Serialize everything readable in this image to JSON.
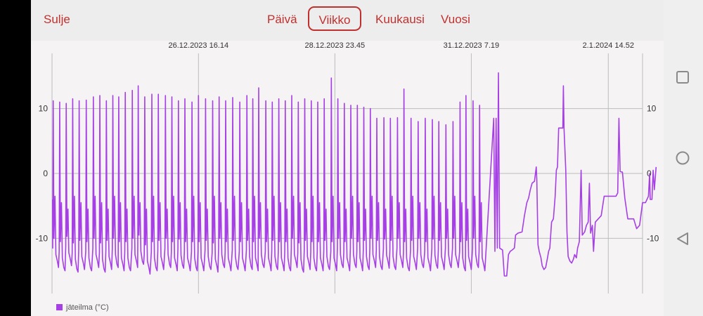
{
  "header": {
    "close_label": "Sulje",
    "tabs": [
      {
        "label": "Päivä",
        "active": false
      },
      {
        "label": "Viikko",
        "active": true
      },
      {
        "label": "Kuukausi",
        "active": false
      },
      {
        "label": "Vuosi",
        "active": false
      }
    ]
  },
  "system_nav": {
    "icons": [
      "recent-apps-square-icon",
      "home-circle-icon",
      "back-triangle-icon"
    ]
  },
  "colors": {
    "accent": "#c0302e",
    "series": "#a63fe6",
    "grid": "#bdbdbd"
  },
  "chart_data": {
    "type": "line",
    "title": "",
    "x_tick_labels": [
      "26.12.2023 16.14",
      "28.12.2023 23.45",
      "31.12.2023 7.19",
      "2.1.2024 14.52"
    ],
    "y_ticks": [
      10,
      0,
      -10
    ],
    "y_tick_labels": [
      "10",
      "0",
      "-10"
    ],
    "ylim": [
      -18.5,
      18.5
    ],
    "y_axis_sides": "left and right",
    "grid": true,
    "legend": "bottom-left",
    "x_unit": "days since 24.12.2023 0.00 (approx.)",
    "xlim": [
      0.2,
      10.2
    ],
    "x_tick_values": [
      2.68,
      4.99,
      7.3,
      9.62
    ],
    "series": [
      {
        "name": "jäteilma (°C)",
        "cycles": [
          {
            "t": 0.22,
            "peak": 11.2,
            "low": -14.5
          },
          {
            "t": 0.33,
            "peak": 11.0,
            "low": -15.0
          },
          {
            "t": 0.44,
            "peak": 10.8,
            "low": -14.2
          },
          {
            "t": 0.55,
            "peak": 11.5,
            "low": -15.2
          },
          {
            "t": 0.66,
            "peak": 11.2,
            "low": -14.8
          },
          {
            "t": 0.78,
            "peak": 11.3,
            "low": -15.0
          },
          {
            "t": 0.9,
            "peak": 11.8,
            "low": -14.5
          },
          {
            "t": 1.01,
            "peak": 12.0,
            "low": -15.2
          },
          {
            "t": 1.12,
            "peak": 11.2,
            "low": -14.8
          },
          {
            "t": 1.23,
            "peak": 12.0,
            "low": -14.5
          },
          {
            "t": 1.33,
            "peak": 11.8,
            "low": -15.0
          },
          {
            "t": 1.44,
            "peak": 12.5,
            "low": -15.0
          },
          {
            "t": 1.56,
            "peak": 12.8,
            "low": -14.5
          },
          {
            "t": 1.66,
            "peak": 13.5,
            "low": -14.0
          },
          {
            "t": 1.77,
            "peak": 11.8,
            "low": -15.5
          },
          {
            "t": 1.89,
            "peak": 12.2,
            "low": -15.0
          },
          {
            "t": 2.0,
            "peak": 12.2,
            "low": -14.8
          },
          {
            "t": 2.12,
            "peak": 12.0,
            "low": -14.5
          },
          {
            "t": 2.23,
            "peak": 11.8,
            "low": -15.0
          },
          {
            "t": 2.34,
            "peak": 11.2,
            "low": -14.6
          },
          {
            "t": 2.45,
            "peak": 11.5,
            "low": -15.0
          },
          {
            "t": 2.57,
            "peak": 11.0,
            "low": -15.0
          },
          {
            "t": 2.68,
            "peak": 12.0,
            "low": -15.0
          },
          {
            "t": 2.8,
            "peak": 11.5,
            "low": -14.8
          },
          {
            "t": 2.92,
            "peak": 11.2,
            "low": -15.2
          },
          {
            "t": 3.03,
            "peak": 11.8,
            "low": -14.5
          },
          {
            "t": 3.14,
            "peak": 11.2,
            "low": -15.0
          },
          {
            "t": 3.26,
            "peak": 11.7,
            "low": -14.8
          },
          {
            "t": 3.38,
            "peak": 11.0,
            "low": -15.0
          },
          {
            "t": 3.5,
            "peak": 12.0,
            "low": -14.8
          },
          {
            "t": 3.6,
            "peak": 11.5,
            "low": -15.0
          },
          {
            "t": 3.7,
            "peak": 13.2,
            "low": -14.5
          },
          {
            "t": 3.82,
            "peak": 11.2,
            "low": -15.0
          },
          {
            "t": 3.93,
            "peak": 11.0,
            "low": -14.8
          },
          {
            "t": 4.04,
            "peak": 11.5,
            "low": -15.0
          },
          {
            "t": 4.15,
            "peak": 11.2,
            "low": -15.0
          },
          {
            "t": 4.26,
            "peak": 12.0,
            "low": -14.5
          },
          {
            "t": 4.37,
            "peak": 11.0,
            "low": -15.2
          },
          {
            "t": 4.48,
            "peak": 11.5,
            "low": -14.8
          },
          {
            "t": 4.59,
            "peak": 11.2,
            "low": -15.0
          },
          {
            "t": 4.7,
            "peak": 11.0,
            "low": -15.0
          },
          {
            "t": 4.81,
            "peak": 11.5,
            "low": -14.8
          },
          {
            "t": 4.93,
            "peak": 14.7,
            "low": -15.0
          },
          {
            "t": 5.04,
            "peak": 11.5,
            "low": -14.5
          },
          {
            "t": 5.15,
            "peak": 10.8,
            "low": -15.0
          },
          {
            "t": 5.26,
            "peak": 10.5,
            "low": -14.5
          },
          {
            "t": 5.37,
            "peak": 10.5,
            "low": -15.0
          },
          {
            "t": 5.48,
            "peak": 10.2,
            "low": -14.8
          },
          {
            "t": 5.59,
            "peak": 10.0,
            "low": -14.5
          },
          {
            "t": 5.7,
            "peak": 8.5,
            "low": -14.8
          },
          {
            "t": 5.82,
            "peak": 8.6,
            "low": -14.6
          },
          {
            "t": 5.93,
            "peak": 8.5,
            "low": -14.8
          },
          {
            "t": 6.05,
            "peak": 8.6,
            "low": -14.5
          },
          {
            "t": 6.16,
            "peak": 13.0,
            "low": -15.0
          },
          {
            "t": 6.28,
            "peak": 8.5,
            "low": -14.8
          },
          {
            "t": 6.4,
            "peak": 8.0,
            "low": -14.5
          },
          {
            "t": 6.52,
            "peak": 8.5,
            "low": -15.0
          },
          {
            "t": 6.64,
            "peak": 8.3,
            "low": -14.6
          },
          {
            "t": 6.75,
            "peak": 8.0,
            "low": -14.8
          },
          {
            "t": 6.87,
            "peak": 7.5,
            "low": -14.5
          },
          {
            "t": 6.99,
            "peak": 8.0,
            "low": -14.5
          },
          {
            "t": 7.11,
            "peak": 11.0,
            "low": -15.0
          },
          {
            "t": 7.21,
            "peak": 12.0,
            "low": -14.8
          },
          {
            "t": 7.33,
            "peak": 11.2,
            "low": -14.5
          },
          {
            "t": 7.44,
            "peak": 10.5,
            "low": -15.0
          }
        ],
        "tail": [
          [
            7.68,
            8.5
          ],
          [
            7.7,
            -12.0
          ],
          [
            7.72,
            8.5
          ],
          [
            7.74,
            -11.5
          ],
          [
            7.76,
            15.5
          ],
          [
            7.78,
            -11.5
          ],
          [
            7.83,
            -11.8
          ],
          [
            7.86,
            -15.8
          ],
          [
            7.9,
            -15.8
          ],
          [
            7.93,
            -12.5
          ],
          [
            7.96,
            -12.0
          ],
          [
            7.99,
            -11.8
          ],
          [
            8.03,
            -11.5
          ],
          [
            8.05,
            -9.5
          ],
          [
            8.09,
            -9.2
          ],
          [
            8.16,
            -9.0
          ],
          [
            8.2,
            -6.5
          ],
          [
            8.24,
            -4.5
          ],
          [
            8.27,
            -3.8
          ],
          [
            8.3,
            -2.5
          ],
          [
            8.33,
            -1.5
          ],
          [
            8.37,
            -1.2
          ],
          [
            8.4,
            1.0
          ],
          [
            8.41,
            -1.0
          ],
          [
            8.43,
            -11.0
          ],
          [
            8.45,
            -12.0
          ],
          [
            8.48,
            -13.0
          ],
          [
            8.5,
            -14.2
          ],
          [
            8.53,
            -14.8
          ],
          [
            8.56,
            -14.5
          ],
          [
            8.59,
            -13.0
          ],
          [
            8.61,
            -12.0
          ],
          [
            8.63,
            -11.5
          ],
          [
            8.66,
            -7.5
          ],
          [
            8.69,
            -7.0
          ],
          [
            8.72,
            -3.5
          ],
          [
            8.74,
            0.5
          ],
          [
            8.76,
            1.0
          ],
          [
            8.78,
            7.0
          ],
          [
            8.82,
            7.0
          ],
          [
            8.85,
            7.0
          ],
          [
            8.86,
            13.5
          ],
          [
            8.87,
            7.0
          ],
          [
            8.9,
            0.5
          ],
          [
            8.92,
            -9.0
          ],
          [
            8.94,
            -12.8
          ],
          [
            8.97,
            -13.5
          ],
          [
            9.0,
            -13.8
          ],
          [
            9.03,
            -13.2
          ],
          [
            9.05,
            -12.5
          ],
          [
            9.08,
            -13.0
          ],
          [
            9.1,
            -11.5
          ],
          [
            9.13,
            -10.5
          ],
          [
            9.16,
            0.5
          ],
          [
            9.18,
            -9.5
          ],
          [
            9.22,
            -9.0
          ],
          [
            9.25,
            -8.0
          ],
          [
            9.28,
            -7.5
          ],
          [
            9.3,
            -1.5
          ],
          [
            9.32,
            -9.2
          ],
          [
            9.35,
            -8.0
          ],
          [
            9.37,
            -12.0
          ],
          [
            9.4,
            -7.5
          ],
          [
            9.45,
            -7.0
          ],
          [
            9.5,
            -6.5
          ],
          [
            9.55,
            -3.5
          ],
          [
            9.6,
            -3.5
          ],
          [
            9.65,
            -3.5
          ],
          [
            9.7,
            -3.5
          ],
          [
            9.75,
            -3.5
          ],
          [
            9.78,
            -3.0
          ],
          [
            9.8,
            8.5
          ],
          [
            9.82,
            0.3
          ],
          [
            9.86,
            0.2
          ],
          [
            9.9,
            -3.8
          ],
          [
            9.95,
            -7.0
          ],
          [
            10.0,
            -7.0
          ],
          [
            10.05,
            -7.0
          ],
          [
            10.1,
            -8.5
          ],
          [
            10.15,
            -8.0
          ],
          [
            10.2,
            -4.5
          ],
          [
            10.25,
            -4.5
          ],
          [
            10.3,
            -3.5
          ],
          [
            10.32,
            0.0
          ],
          [
            10.33,
            -4.0
          ],
          [
            10.36,
            -4.0
          ],
          [
            10.38,
            0.5
          ],
          [
            10.4,
            -2.5
          ],
          [
            10.43,
            1.0
          ]
        ]
      }
    ]
  }
}
